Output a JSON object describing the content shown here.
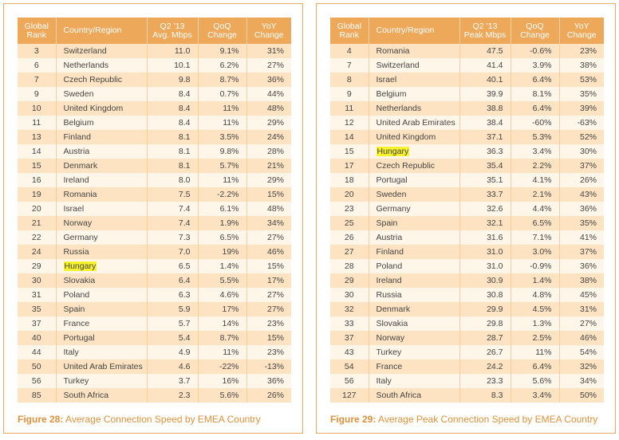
{
  "figure28": {
    "caption_label": "Figure 28:",
    "caption_text": "Average Connection Speed by EMEA Country",
    "headers": {
      "rank": [
        "Global",
        "Rank"
      ],
      "country": "Country/Region",
      "speed": [
        "Q2 ’13",
        "Avg. Mbps"
      ],
      "qoq": [
        "QoQ",
        "Change"
      ],
      "yoy": [
        "YoY",
        "Change"
      ]
    },
    "highlight": "Hungary",
    "rows": [
      [
        "3",
        "Switzerland",
        "11.0",
        "9.1%",
        "31%"
      ],
      [
        "6",
        "Netherlands",
        "10.1",
        "6.2%",
        "27%"
      ],
      [
        "7",
        "Czech Republic",
        "9.8",
        "8.7%",
        "36%"
      ],
      [
        "9",
        "Sweden",
        "8.4",
        "0.7%",
        "44%"
      ],
      [
        "10",
        "United Kingdom",
        "8.4",
        "11%",
        "48%"
      ],
      [
        "11",
        "Belgium",
        "8.4",
        "11%",
        "29%"
      ],
      [
        "13",
        "Finland",
        "8.1",
        "3.5%",
        "24%"
      ],
      [
        "14",
        "Austria",
        "8.1",
        "9.8%",
        "28%"
      ],
      [
        "15",
        "Denmark",
        "8.1",
        "5.7%",
        "21%"
      ],
      [
        "16",
        "Ireland",
        "8.0",
        "11%",
        "29%"
      ],
      [
        "19",
        "Romania",
        "7.5",
        "-2.2%",
        "15%"
      ],
      [
        "20",
        "Israel",
        "7.4",
        "6.1%",
        "48%"
      ],
      [
        "21",
        "Norway",
        "7.4",
        "1.9%",
        "34%"
      ],
      [
        "22",
        "Germany",
        "7.3",
        "6.5%",
        "27%"
      ],
      [
        "24",
        "Russia",
        "7.0",
        "19%",
        "46%"
      ],
      [
        "29",
        "Hungary",
        "6.5",
        "1.4%",
        "15%"
      ],
      [
        "30",
        "Slovakia",
        "6.4",
        "5.5%",
        "17%"
      ],
      [
        "31",
        "Poland",
        "6.3",
        "4.6%",
        "27%"
      ],
      [
        "35",
        "Spain",
        "5.9",
        "17%",
        "27%"
      ],
      [
        "37",
        "France",
        "5.7",
        "14%",
        "23%"
      ],
      [
        "40",
        "Portugal",
        "5.4",
        "8.7%",
        "15%"
      ],
      [
        "44",
        "Italy",
        "4.9",
        "11%",
        "23%"
      ],
      [
        "50",
        "United Arab Emirates",
        "4.6",
        "-22%",
        "-13%"
      ],
      [
        "56",
        "Turkey",
        "3.7",
        "16%",
        "36%"
      ],
      [
        "85",
        "South Africa",
        "2.3",
        "5.6%",
        "26%"
      ]
    ]
  },
  "figure29": {
    "caption_label": "Figure 29:",
    "caption_text": "Average Peak Connection Speed by EMEA Country",
    "headers": {
      "rank": [
        "Global",
        "Rank"
      ],
      "country": "Country/Region",
      "speed": [
        "Q2 ’13",
        "Peak Mbps"
      ],
      "qoq": [
        "QoQ",
        "Change"
      ],
      "yoy": [
        "YoY",
        "Change"
      ]
    },
    "highlight": "Hungary",
    "rows": [
      [
        "4",
        "Romania",
        "47.5",
        "-0.6%",
        "23%"
      ],
      [
        "7",
        "Switzerland",
        "41.4",
        "3.9%",
        "38%"
      ],
      [
        "8",
        "Israel",
        "40.1",
        "6.4%",
        "53%"
      ],
      [
        "9",
        "Belgium",
        "39.9",
        "8.1%",
        "35%"
      ],
      [
        "11",
        "Netherlands",
        "38.8",
        "6.4%",
        "39%"
      ],
      [
        "12",
        "United Arab Emirates",
        "38.4",
        "-60%",
        "-63%"
      ],
      [
        "14",
        "United Kingdom",
        "37.1",
        "5.3%",
        "52%"
      ],
      [
        "15",
        "Hungary",
        "36.3",
        "3.4%",
        "30%"
      ],
      [
        "17",
        "Czech Republic",
        "35.4",
        "2.2%",
        "37%"
      ],
      [
        "18",
        "Portugal",
        "35.1",
        "4.1%",
        "26%"
      ],
      [
        "20",
        "Sweden",
        "33.7",
        "2.1%",
        "43%"
      ],
      [
        "23",
        "Germany",
        "32.6",
        "4.4%",
        "36%"
      ],
      [
        "25",
        "Spain",
        "32.1",
        "6.5%",
        "35%"
      ],
      [
        "26",
        "Austria",
        "31.6",
        "7.1%",
        "41%"
      ],
      [
        "27",
        "Finland",
        "31.0",
        "3.0%",
        "37%"
      ],
      [
        "28",
        "Poland",
        "31.0",
        "-0.9%",
        "36%"
      ],
      [
        "29",
        "Ireland",
        "30.9",
        "1.4%",
        "38%"
      ],
      [
        "30",
        "Russia",
        "30.8",
        "4.8%",
        "45%"
      ],
      [
        "32",
        "Denmark",
        "29.9",
        "4.5%",
        "31%"
      ],
      [
        "33",
        "Slovakia",
        "29.8",
        "1.3%",
        "27%"
      ],
      [
        "37",
        "Norway",
        "28.7",
        "2.5%",
        "46%"
      ],
      [
        "43",
        "Turkey",
        "26.7",
        "11%",
        "54%"
      ],
      [
        "54",
        "France",
        "24.2",
        "6.4%",
        "32%"
      ],
      [
        "56",
        "Italy",
        "23.3",
        "5.6%",
        "34%"
      ],
      [
        "127",
        "South Africa",
        "8.3",
        "3.4%",
        "50%"
      ]
    ]
  }
}
